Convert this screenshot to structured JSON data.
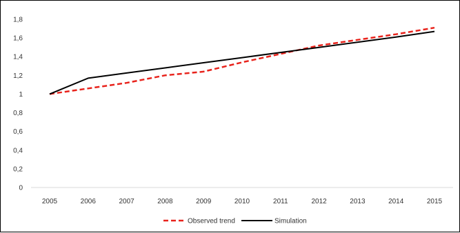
{
  "chart_data": {
    "type": "line",
    "x": [
      "2005",
      "2006",
      "2007",
      "2008",
      "2009",
      "2010",
      "2011",
      "2012",
      "2013",
      "2014",
      "2015"
    ],
    "series": [
      {
        "name": "Observed trend",
        "values": [
          1.0,
          1.06,
          1.12,
          1.2,
          1.24,
          1.34,
          1.43,
          1.52,
          1.58,
          1.64,
          1.71
        ],
        "color": "#e8221b",
        "style": "dashed"
      },
      {
        "name": "Simulation",
        "values": [
          1.0,
          1.17,
          1.225,
          1.28,
          1.335,
          1.39,
          1.445,
          1.5,
          1.555,
          1.61,
          1.67
        ],
        "color": "#000000",
        "style": "solid"
      }
    ],
    "y_ticks": [
      "0",
      "0,2",
      "0,4",
      "0,6",
      "0,8",
      "1",
      "1,2",
      "1,4",
      "1,6",
      "1,8"
    ],
    "ylim": [
      0,
      1.8
    ],
    "grid": false,
    "legend_position": "bottom",
    "axis_color": "#d9d9d9"
  }
}
